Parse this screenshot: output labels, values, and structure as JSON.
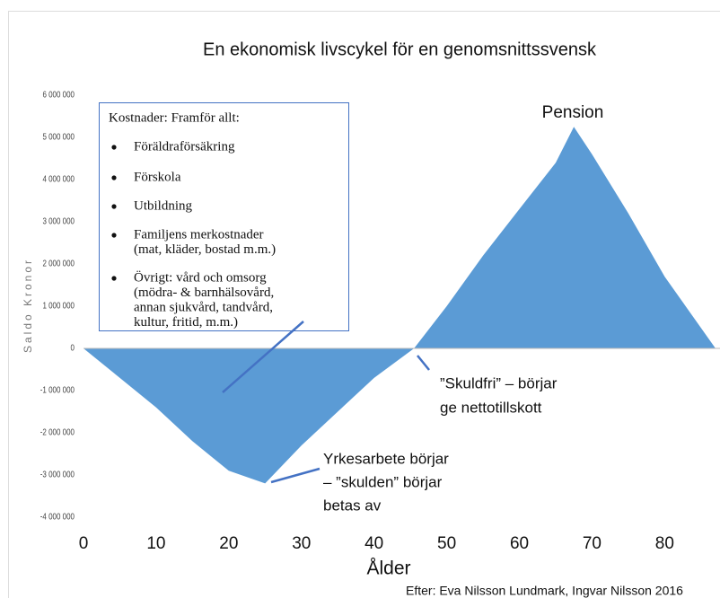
{
  "chart_data": {
    "type": "area",
    "title": "En ekonomisk livscykel för en genomsnittssvensk",
    "ylabel": "Saldo Kronor",
    "xlabel": "Ålder",
    "source": "Efter: Eva Nilsson Lundmark, Ingvar Nilsson 2016",
    "color": "#5b9bd5",
    "x": [
      0,
      5,
      10,
      15,
      20,
      25,
      30,
      35,
      40,
      45.5,
      50,
      55,
      60,
      65,
      67.5,
      70,
      75,
      80,
      87
    ],
    "values": [
      0,
      -700000,
      -1400000,
      -2200000,
      -2900000,
      -3200000,
      -2300000,
      -1500000,
      -700000,
      0,
      1000000,
      2200000,
      3300000,
      4400000,
      5250000,
      4600000,
      3200000,
      1700000,
      0
    ],
    "xlim": [
      0,
      87
    ],
    "xticks": [
      0,
      10,
      20,
      30,
      40,
      50,
      60,
      70,
      80
    ],
    "ylim": [
      -4000000,
      6000000
    ],
    "yticks": [
      {
        "value": -4000000,
        "label": "-4 000 000"
      },
      {
        "value": -3000000,
        "label": "-3 000 000"
      },
      {
        "value": -2000000,
        "label": "-2 000 000"
      },
      {
        "value": -1000000,
        "label": "-1 000 000"
      },
      0,
      {
        "value": 1000000,
        "label": "1 000 000"
      },
      {
        "value": 2000000,
        "label": "2 000 000"
      },
      {
        "value": 3000000,
        "label": "3 000 000"
      },
      {
        "value": 4000000,
        "label": "4 000 000"
      },
      {
        "value": 5000000,
        "label": "5 000 000"
      },
      {
        "value": 6000000,
        "label": "6 000 000"
      }
    ],
    "grid": false,
    "annotations": {
      "pension": "Pension",
      "debt_free": [
        "”Skuldfri” – börjar",
        "ge nettotillskott"
      ],
      "work_start": [
        "Yrkesarbete börjar",
        "– ”skulden” börjar",
        "betas av"
      ]
    },
    "cost_box": {
      "title": "Kostnader: Framför allt:",
      "items": [
        [
          "Föräldraförsäkring"
        ],
        [
          "Förskola"
        ],
        [
          "Utbildning"
        ],
        [
          "Familjens merkostnader",
          "(mat, kläder, bostad m.m.)"
        ],
        [
          "Övrigt:  vård och omsorg",
          "(mödra- & barnhälsovård,",
          "annan sjukvård, tandvård,",
          "kultur, fritid, m.m.)"
        ]
      ]
    }
  }
}
